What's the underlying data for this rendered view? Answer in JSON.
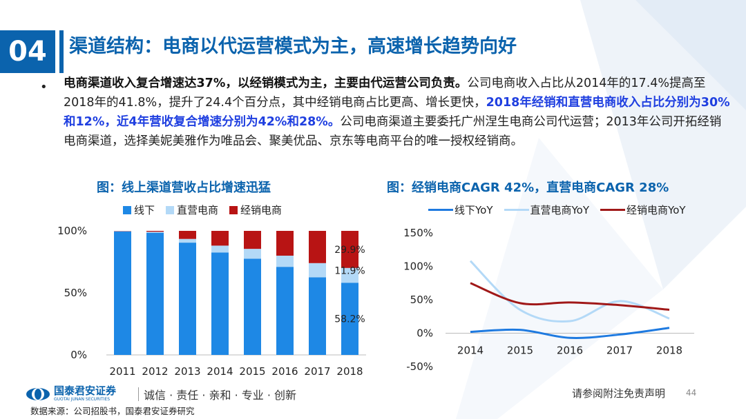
{
  "header": {
    "section_number": "04",
    "title": "渠道结构：电商以代运营模式为主，高速增长趋势向好"
  },
  "body": {
    "bullet": "•",
    "seg1": "电商渠道收入复合增速达37%，以经销模式为主，主要由代运营公司负责。",
    "seg2": "公司电商收入占比从2014年的17.4%提高至2018年的41.8%，提升了24.4个百分点，其中经销电商占比更高、增长更快，",
    "seg3": "2018年经销和直营电商收入占比分别为30%和12%，近4年营收复合增速分别为42%和28%。",
    "seg4": "公司电商渠道主要委托广州涅生电商公司代运营；2013年公司开拓经销电商渠道，选择美妮美雅作为唯品会、聚美优品、京东等电商平台的唯一授权经销商。"
  },
  "chart_left": {
    "title": "图：线上渠道营收占比增速迅猛"
  },
  "chart_right": {
    "title": "图：经销电商CAGR 42%，直营电商CAGR 28%"
  },
  "chart_data": [
    {
      "type": "bar",
      "stacked": true,
      "categories": [
        "2011",
        "2012",
        "2013",
        "2014",
        "2015",
        "2016",
        "2017",
        "2018"
      ],
      "series": [
        {
          "name": "线下",
          "color": "#1e88e5",
          "values": [
            99.5,
            98.5,
            90.5,
            82.6,
            77.5,
            71.0,
            62.5,
            58.2
          ]
        },
        {
          "name": "直营电商",
          "color": "#b3d9f7",
          "values": [
            0.3,
            0.8,
            3.0,
            5.5,
            8.0,
            9.0,
            11.5,
            11.9
          ]
        },
        {
          "name": "经销电商",
          "color": "#b81414",
          "values": [
            0.2,
            0.7,
            6.5,
            11.9,
            14.5,
            20.0,
            26.0,
            29.9
          ]
        }
      ],
      "data_labels": [
        {
          "series": "经销电商",
          "category": "2018",
          "text": "29.9%"
        },
        {
          "series": "直营电商",
          "category": "2018",
          "text": "11.9%"
        },
        {
          "series": "线下",
          "category": "2018",
          "text": "58.2%"
        }
      ],
      "yticks": [
        "0%",
        "50%",
        "100%"
      ],
      "ylim": [
        0,
        100
      ],
      "legend_position": "top"
    },
    {
      "type": "line",
      "x": [
        "2014",
        "2015",
        "2016",
        "2017",
        "2018"
      ],
      "series": [
        {
          "name": "线下YoY",
          "color": "#1e7ae0",
          "values": [
            2,
            5,
            -7,
            -2,
            8
          ]
        },
        {
          "name": "直营电商YoY",
          "color": "#b3d9f7",
          "values": [
            108,
            35,
            18,
            48,
            22
          ]
        },
        {
          "name": "经销电商YoY",
          "color": "#a01818",
          "values": [
            75,
            45,
            46,
            42,
            35
          ]
        }
      ],
      "yticks": [
        "-50%",
        "0%",
        "50%",
        "100%",
        "150%"
      ],
      "ylim": [
        -50,
        150
      ],
      "legend_position": "top"
    }
  ],
  "footer": {
    "logo_cn": "国泰君安证券",
    "logo_en": "GUOTAI JUNAN SECURITIES",
    "slogan": "诚信 · 责任 · 亲和 · 专业 · 创新",
    "source": "数据来源：公司招股书，国泰君安证券研究",
    "disclaimer": "请参阅附注免责声明",
    "page_number": "44"
  },
  "colors": {
    "brand_blue": "#0b63ad",
    "highlight_blue": "#1f3fe0"
  }
}
